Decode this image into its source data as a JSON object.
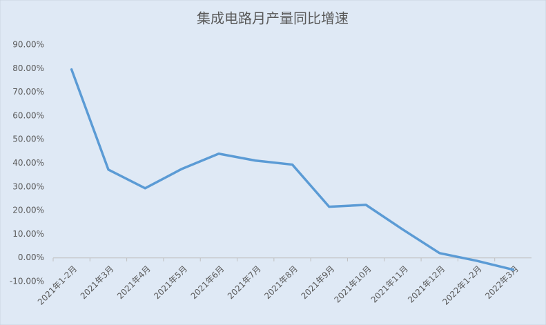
{
  "chart_data": {
    "type": "line",
    "title": "集成电路月产量同比增速",
    "categories": [
      "2021年1-2月",
      "2021年3月",
      "2021年4月",
      "2021年5月",
      "2021年6月",
      "2021年7月",
      "2021年8月",
      "2021年9月",
      "2021年10月",
      "2021年11月",
      "2021年12月",
      "2022年1-2月",
      "2022年3月"
    ],
    "series": [
      {
        "color": "#5b9bd5",
        "values": [
          79.6,
          37.3,
          29.4,
          37.6,
          44.0,
          41.1,
          39.4,
          21.6,
          22.4,
          12.0,
          2.0,
          -1.2,
          -5.0
        ]
      }
    ],
    "ylim": [
      -10,
      90
    ],
    "yticks": [
      {
        "value": -10,
        "label": "-10.00%"
      },
      {
        "value": 0,
        "label": "0.00%"
      },
      {
        "value": 10,
        "label": "10.00%"
      },
      {
        "value": 20,
        "label": "20.00%"
      },
      {
        "value": 30,
        "label": "30.00%"
      },
      {
        "value": 40,
        "label": "40.00%"
      },
      {
        "value": 50,
        "label": "50.00%"
      },
      {
        "value": 60,
        "label": "60.00%"
      },
      {
        "value": 70,
        "label": "70.00%"
      },
      {
        "value": 80,
        "label": "80.00%"
      },
      {
        "value": 90,
        "label": "90.00%"
      }
    ],
    "grid": false
  }
}
